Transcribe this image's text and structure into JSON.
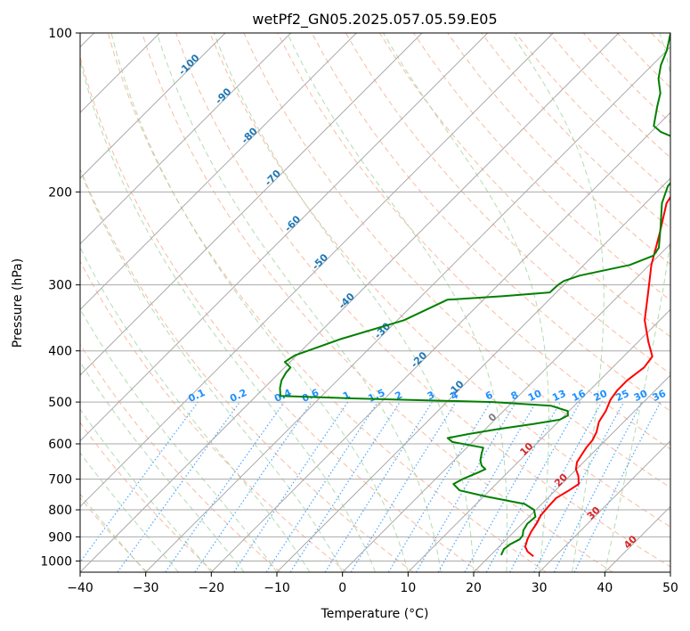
{
  "chart_data": {
    "type": "line",
    "title": "wetPf2_GN05.2025.057.05.59.E05",
    "xlabel": "Temperature (°C)",
    "ylabel": "Pressure (hPa)",
    "xlim": [
      -40,
      50
    ],
    "ylim": [
      1050,
      100
    ],
    "y_scale": "log",
    "skew": "skew-T",
    "x_ticks": [
      -40,
      -30,
      -20,
      -10,
      0,
      10,
      20,
      30,
      40,
      50
    ],
    "x_tick_labels": [
      "−40",
      "−30",
      "−20",
      "−10",
      "0",
      "10",
      "20",
      "30",
      "40",
      "50"
    ],
    "y_ticks": [
      100,
      200,
      300,
      400,
      500,
      600,
      700,
      800,
      900,
      1000
    ],
    "y_tick_labels": [
      "100",
      "200",
      "300",
      "400",
      "500",
      "600",
      "700",
      "800",
      "900",
      "1000"
    ],
    "grid": true,
    "series": [
      {
        "color": "#ff0000",
        "points": [
          [
            26.7,
            980
          ],
          [
            25.1,
            960
          ],
          [
            24.0,
            940
          ],
          [
            23.2,
            910
          ],
          [
            22.6,
            880
          ],
          [
            22.2,
            850
          ],
          [
            21.6,
            820
          ],
          [
            21.4,
            790
          ],
          [
            21.3,
            760
          ],
          [
            22.1,
            735
          ],
          [
            22.6,
            715
          ],
          [
            21.3,
            690
          ],
          [
            19.9,
            670
          ],
          [
            19.0,
            650
          ],
          [
            18.6,
            630
          ],
          [
            18.2,
            610
          ],
          [
            18.0,
            590
          ],
          [
            17.4,
            570
          ],
          [
            16.2,
            545
          ],
          [
            15.6,
            520
          ],
          [
            14.6,
            495
          ],
          [
            14.2,
            475
          ],
          [
            14.2,
            455
          ],
          [
            14.8,
            430
          ],
          [
            14.4,
            410
          ],
          [
            11.6,
            385
          ],
          [
            7.7,
            350
          ],
          [
            4.0,
            310
          ],
          [
            0.3,
            275
          ],
          [
            -3.2,
            240
          ],
          [
            -6.8,
            210
          ],
          [
            -8.0,
            190
          ],
          [
            -7.0,
            175
          ],
          [
            -7.0,
            165
          ],
          [
            -9.0,
            150
          ],
          [
            -12.0,
            135
          ],
          [
            -15.0,
            120
          ],
          [
            -18.6,
            110
          ],
          [
            -21.0,
            100
          ]
        ]
      },
      {
        "color": "#008000",
        "points": [
          [
            21.6,
            975
          ],
          [
            21.1,
            950
          ],
          [
            21.3,
            930
          ],
          [
            22.0,
            910
          ],
          [
            21.9,
            895
          ],
          [
            21.2,
            875
          ],
          [
            20.8,
            850
          ],
          [
            21.0,
            825
          ],
          [
            19.7,
            800
          ],
          [
            17.4,
            780
          ],
          [
            10.4,
            755
          ],
          [
            5.4,
            735
          ],
          [
            3.5,
            715
          ],
          [
            4.1,
            700
          ],
          [
            5.5,
            680
          ],
          [
            6.1,
            670
          ],
          [
            5.0,
            660
          ],
          [
            4.0,
            645
          ],
          [
            3.1,
            625
          ],
          [
            2.5,
            610
          ],
          [
            -3.1,
            595
          ],
          [
            -4.4,
            585
          ],
          [
            -1.9,
            575
          ],
          [
            1.8,
            563
          ],
          [
            6.6,
            550
          ],
          [
            9.9,
            540
          ],
          [
            10.5,
            530
          ],
          [
            9.8,
            520
          ],
          [
            6.4,
            508
          ],
          [
            -3.0,
            500
          ],
          [
            -25.0,
            492
          ],
          [
            -36.3,
            487
          ],
          [
            -37.6,
            470
          ],
          [
            -38.5,
            455
          ],
          [
            -39.0,
            440
          ],
          [
            -39.1,
            430
          ],
          [
            -40.8,
            420
          ],
          [
            -40.3,
            408
          ],
          [
            -35.8,
            380
          ],
          [
            -29.0,
            350
          ],
          [
            -25.5,
            320
          ],
          [
            -17.5,
            315
          ],
          [
            -11.0,
            310
          ],
          [
            -10.9,
            300
          ],
          [
            -10.6,
            295
          ],
          [
            -9.0,
            288
          ],
          [
            -3.0,
            275
          ],
          [
            -0.8,
            264
          ],
          [
            -1.2,
            255
          ],
          [
            -3.8,
            235
          ],
          [
            -7.5,
            210
          ],
          [
            -9.2,
            195
          ],
          [
            -9.4,
            185
          ],
          [
            -8.6,
            178
          ],
          [
            -8.2,
            172
          ],
          [
            -7.7,
            168
          ],
          [
            -14.0,
            160
          ],
          [
            -18.5,
            154
          ],
          [
            -20.5,
            150
          ],
          [
            -22.9,
            138
          ],
          [
            -24.5,
            130
          ],
          [
            -27.0,
            122
          ],
          [
            -28.7,
            115
          ],
          [
            -30.0,
            108
          ],
          [
            -32.1,
            100
          ]
        ]
      }
    ],
    "annotations": {
      "isotherm_labels": {
        "color": "#1f77b4",
        "items": [
          {
            "text": "-100",
            "t": -100,
            "p": 116
          },
          {
            "text": "-90",
            "t": -90,
            "p": 133
          },
          {
            "text": "-80",
            "t": -80,
            "p": 158
          },
          {
            "text": "-70",
            "t": -70,
            "p": 190
          },
          {
            "text": "-60",
            "t": -60,
            "p": 232
          },
          {
            "text": "-50",
            "t": -50,
            "p": 274
          },
          {
            "text": "-40",
            "t": -40,
            "p": 325
          },
          {
            "text": "-30",
            "t": -30,
            "p": 370
          },
          {
            "text": "-20",
            "t": -20,
            "p": 420
          },
          {
            "text": "-10",
            "t": -10,
            "p": 476
          },
          {
            "text": "0",
            "t": 0,
            "p": 540
          },
          {
            "text": "10",
            "t": 10,
            "p": 620
          },
          {
            "text": "20",
            "t": 20,
            "p": 710
          },
          {
            "text": "30",
            "t": 30,
            "p": 820
          },
          {
            "text": "40",
            "t": 40,
            "p": 930
          }
        ]
      },
      "mixing_ratio_labels": {
        "color": "#1e90ff",
        "items": [
          "0.1",
          "0.2",
          "0.4",
          "0.6",
          "1",
          "1.5",
          "2",
          "3",
          "4",
          "6",
          "8",
          "10",
          "13",
          "16",
          "20",
          "25",
          "30",
          "36"
        ]
      }
    }
  }
}
